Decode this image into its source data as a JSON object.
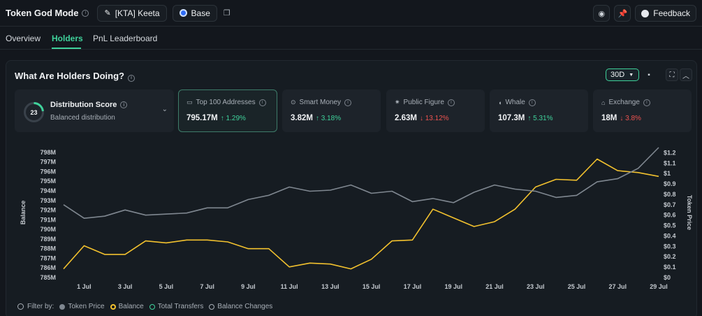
{
  "header": {
    "title": "Token God Mode",
    "token_label": "[KTA] Keeta",
    "chain_label": "Base",
    "feedback_label": "Feedback"
  },
  "tabs": [
    {
      "label": "Overview",
      "active": false
    },
    {
      "label": "Holders",
      "active": true
    },
    {
      "label": "PnL Leaderboard",
      "active": false
    }
  ],
  "panel": {
    "title": "What Are Holders Doing?",
    "period": "30D"
  },
  "distribution": {
    "score": "23",
    "score_fraction": 0.23,
    "title": "Distribution Score",
    "subtitle": "Balanced distribution"
  },
  "cards": [
    {
      "label": "Top 100 Addresses",
      "icon": "id-card-icon",
      "value": "795.17M",
      "change": "↑ 1.29%",
      "direction": "up",
      "selected": true
    },
    {
      "label": "Smart Money",
      "icon": "brain-icon",
      "value": "3.82M",
      "change": "↑ 3.18%",
      "direction": "up",
      "selected": false
    },
    {
      "label": "Public Figure",
      "icon": "megaphone-icon",
      "value": "2.63M",
      "change": "↓ 13.12%",
      "direction": "down",
      "selected": false
    },
    {
      "label": "Whale",
      "icon": "whale-icon",
      "value": "107.3M",
      "change": "↑ 5.31%",
      "direction": "up",
      "selected": false
    },
    {
      "label": "Exchange",
      "icon": "bank-icon",
      "value": "18M",
      "change": "↓ 3.8%",
      "direction": "down",
      "selected": false
    }
  ],
  "legend": {
    "filter_label": "Filter by:",
    "items": [
      {
        "label": "Token Price",
        "color": "#7f8790",
        "active": true
      },
      {
        "label": "Balance",
        "color": "#f2c12e",
        "active": true
      },
      {
        "label": "Total Transfers",
        "color": "#3fd29b",
        "active": false
      },
      {
        "label": "Balance Changes",
        "color": "#a8afb7",
        "active": false
      }
    ]
  },
  "chart_data": {
    "type": "line",
    "ylabel": "Balance",
    "y2label": "Token Price",
    "x_ticks": [
      "1 Jul",
      "3 Jul",
      "5 Jul",
      "7 Jul",
      "9 Jul",
      "11 Jul",
      "13 Jul",
      "15 Jul",
      "17 Jul",
      "19 Jul",
      "21 Jul",
      "23 Jul",
      "25 Jul",
      "27 Jul",
      "29 Jul"
    ],
    "y_ticks": [
      "798M",
      "797M",
      "796M",
      "795M",
      "794M",
      "793M",
      "792M",
      "791M",
      "790M",
      "789M",
      "788M",
      "787M",
      "786M",
      "785M"
    ],
    "y2_ticks": [
      "$1.2",
      "$1.1",
      "$1",
      "$0.9",
      "$0.8",
      "$0.7",
      "$0.6",
      "$0.5",
      "$0.4",
      "$0.3",
      "$0.2",
      "$0.1",
      "$0"
    ],
    "ylim": [
      785,
      798.5
    ],
    "y2lim": [
      0,
      1.25
    ],
    "x_days": [
      30,
      1,
      2,
      3,
      4,
      5,
      6,
      7,
      8,
      9,
      10,
      11,
      12,
      13,
      14,
      15,
      16,
      17,
      18,
      19,
      20,
      21,
      22,
      23,
      24,
      25,
      26,
      27,
      28,
      29
    ],
    "series": [
      {
        "name": "Balance",
        "axis": "left",
        "color": "#f2c12e",
        "values": [
          785.9,
          788.3,
          787.4,
          787.4,
          788.8,
          788.6,
          788.9,
          788.9,
          788.7,
          788.0,
          788.0,
          786.1,
          786.5,
          786.4,
          785.9,
          786.9,
          788.8,
          788.9,
          792.1,
          791.2,
          790.3,
          790.8,
          792.1,
          794.4,
          795.2,
          795.1,
          797.3,
          796.1,
          795.9,
          795.5
        ]
      },
      {
        "name": "Token Price",
        "axis": "right",
        "color": "#7f8790",
        "values": [
          0.7,
          0.57,
          0.59,
          0.65,
          0.6,
          0.61,
          0.62,
          0.67,
          0.67,
          0.75,
          0.79,
          0.87,
          0.83,
          0.84,
          0.89,
          0.81,
          0.83,
          0.73,
          0.76,
          0.72,
          0.82,
          0.89,
          0.85,
          0.83,
          0.77,
          0.79,
          0.92,
          0.95,
          1.05,
          1.25
        ]
      }
    ]
  }
}
